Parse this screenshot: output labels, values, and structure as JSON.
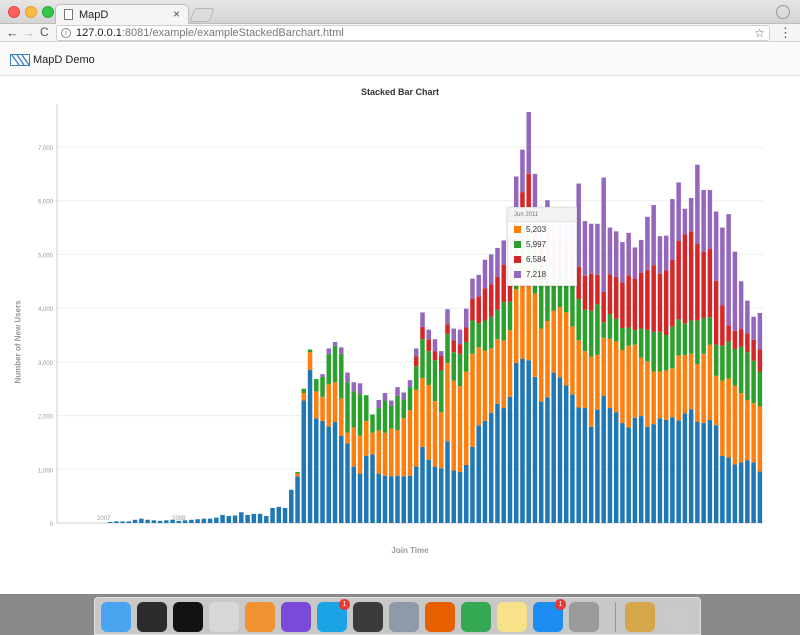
{
  "browser": {
    "tab_title": "MapD",
    "tab_close": "×",
    "url_host": "127.0.0.1",
    "url_rest": ":8081/example/exampleStackedBarchart.html",
    "back_glyph": "←",
    "forward_glyph": "→",
    "reload_glyph": "C",
    "info_glyph": "i",
    "star_glyph": "☆",
    "menu_glyph": "⋮"
  },
  "app": {
    "title": "MapD Demo"
  },
  "tooltip": {
    "title": "Jun 2011",
    "rows": [
      {
        "value": "5,203",
        "color": "#ff7f0e"
      },
      {
        "value": "5,997",
        "color": "#2ca02c"
      },
      {
        "value": "6,584",
        "color": "#d62728"
      },
      {
        "value": "7,218",
        "color": "#9467bd"
      }
    ]
  },
  "chart_data": {
    "type": "bar",
    "stacked": true,
    "title": "Stacked Bar Chart",
    "xlabel": "Join Time",
    "ylabel": "Number of New Users",
    "ylim": [
      0,
      7800
    ],
    "yticks": [
      0,
      1000,
      2000,
      3000,
      4000,
      5000,
      6000,
      7000
    ],
    "ytick_labels": [
      "0",
      "1,000",
      "2,000",
      "3,000",
      "4,000",
      "5,000",
      "6,000",
      "7,000"
    ],
    "xtick_labels": [
      {
        "label": "2007",
        "index": 7
      },
      {
        "label": "2008",
        "index": 19
      }
    ],
    "grid": true,
    "series_colors": [
      "#1f77b4",
      "#ff7f0e",
      "#2ca02c",
      "#d62728",
      "#9467bd"
    ],
    "series_cumulative": {
      "s1": [
        0,
        0,
        0,
        0,
        0,
        0,
        0,
        0,
        20,
        30,
        30,
        30,
        60,
        80,
        60,
        50,
        40,
        50,
        60,
        40,
        50,
        60,
        70,
        80,
        80,
        100,
        150,
        130,
        140,
        200,
        150,
        170,
        170,
        130,
        280,
        300,
        280,
        620,
        870,
        2280,
        2850,
        1950,
        1900,
        1800,
        1880,
        1620,
        1480,
        1050,
        920,
        1250,
        1280,
        920,
        880,
        870,
        880,
        870,
        880,
        1050,
        1420,
        1180,
        1050,
        1020,
        1520,
        980,
        950,
        1080,
        1420,
        1820,
        1900,
        2050,
        2220,
        2140,
        2350,
        2980,
        3060,
        3030,
        2720,
        2260,
        2340,
        2800,
        2710,
        2560,
        2390,
        2150,
        2140,
        1790,
        2110,
        2370,
        2140,
        2060,
        1860,
        1780,
        1960,
        1990,
        1790,
        1840,
        1950,
        1920,
        1970,
        1910,
        2040,
        2120,
        1880,
        1860,
        1920,
        1820,
        1250,
        1220,
        1090,
        1130,
        1170,
        1130,
        960
      ],
      "s2": [
        0,
        0,
        0,
        0,
        0,
        0,
        0,
        0,
        20,
        30,
        30,
        30,
        60,
        80,
        60,
        50,
        40,
        50,
        60,
        40,
        50,
        60,
        70,
        80,
        80,
        100,
        150,
        130,
        140,
        200,
        150,
        170,
        170,
        130,
        280,
        300,
        280,
        620,
        920,
        2420,
        3180,
        2450,
        2350,
        2580,
        2620,
        2320,
        1680,
        1780,
        1630,
        1900,
        1680,
        1720,
        1680,
        1760,
        1730,
        1950,
        2100,
        2480,
        2700,
        2570,
        2270,
        2060,
        2980,
        2650,
        2550,
        2820,
        3150,
        3270,
        3210,
        3250,
        3420,
        3400,
        3590,
        4350,
        4670,
        4800,
        4270,
        3620,
        3760,
        3950,
        4020,
        3920,
        3660,
        3400,
        3200,
        3100,
        3130,
        3450,
        3430,
        3380,
        3220,
        3300,
        3320,
        3080,
        3010,
        2820,
        2820,
        2840,
        2880,
        3120,
        3130,
        3150,
        2960,
        3150,
        3320,
        2740,
        2650,
        2690,
        2560,
        2420,
        2290,
        2230,
        2170
      ],
      "s3": [
        0,
        0,
        0,
        0,
        0,
        0,
        0,
        0,
        20,
        30,
        30,
        30,
        60,
        80,
        60,
        50,
        40,
        50,
        60,
        40,
        50,
        60,
        70,
        80,
        80,
        100,
        150,
        130,
        140,
        200,
        150,
        170,
        170,
        130,
        280,
        300,
        280,
        620,
        950,
        2500,
        3230,
        2680,
        2720,
        3150,
        3300,
        3150,
        2620,
        2450,
        2400,
        2380,
        2020,
        2140,
        2280,
        2180,
        2370,
        2300,
        2530,
        2920,
        3420,
        3200,
        3030,
        2840,
        3520,
        3180,
        3150,
        3370,
        3770,
        3720,
        3770,
        3840,
        3970,
        4110,
        4120,
        5130,
        5530,
        5880,
        5170,
        4710,
        4870,
        4620,
        4650,
        4620,
        4420,
        4170,
        3970,
        3950,
        4070,
        3740,
        3890,
        3800,
        3630,
        3640,
        3590,
        3620,
        3600,
        3560,
        3560,
        3500,
        3660,
        3790,
        3710,
        3770,
        3770,
        3810,
        3830,
        3320,
        3300,
        3380,
        3240,
        3280,
        3180,
        3020,
        2820
      ],
      "s4": [
        0,
        0,
        0,
        0,
        0,
        0,
        0,
        0,
        20,
        30,
        30,
        30,
        60,
        80,
        60,
        50,
        40,
        50,
        60,
        40,
        50,
        60,
        70,
        80,
        80,
        100,
        150,
        130,
        140,
        200,
        150,
        170,
        170,
        130,
        280,
        300,
        280,
        620,
        950,
        2500,
        3230,
        2680,
        2720,
        3150,
        3300,
        3150,
        2620,
        2450,
        2400,
        2380,
        2020,
        2140,
        2280,
        2180,
        2370,
        2300,
        2530,
        3100,
        3650,
        3420,
        3200,
        3110,
        3700,
        3400,
        3330,
        3640,
        4170,
        4220,
        4370,
        4440,
        4580,
        4810,
        4840,
        5870,
        6160,
        6500,
        5800,
        5210,
        5500,
        5220,
        5260,
        5180,
        4950,
        4770,
        4600,
        4640,
        4620,
        4300,
        4630,
        4580,
        4480,
        4610,
        4550,
        4660,
        4700,
        4800,
        4640,
        4700,
        4900,
        5250,
        5370,
        5430,
        5200,
        5050,
        5100,
        4510,
        4050,
        3680,
        3580,
        3610,
        3530,
        3410,
        3230
      ],
      "s5": [
        0,
        0,
        0,
        0,
        0,
        0,
        0,
        0,
        20,
        30,
        30,
        30,
        60,
        80,
        60,
        50,
        40,
        50,
        60,
        40,
        50,
        60,
        70,
        80,
        80,
        100,
        150,
        130,
        140,
        200,
        150,
        170,
        170,
        130,
        280,
        300,
        280,
        620,
        950,
        2500,
        3230,
        2680,
        2770,
        3250,
        3370,
        3270,
        2800,
        2620,
        2600,
        2380,
        2020,
        2290,
        2420,
        2280,
        2530,
        2430,
        2660,
        3250,
        3920,
        3600,
        3420,
        3200,
        3980,
        3620,
        3600,
        3990,
        4550,
        4620,
        4900,
        5000,
        5120,
        5260,
        5360,
        6450,
        6950,
        7650,
        6500,
        5850,
        6010,
        5850,
        5880,
        5850,
        5850,
        6320,
        5620,
        5570,
        5570,
        6430,
        5500,
        5430,
        5230,
        5400,
        5130,
        5270,
        5700,
        5920,
        5340,
        5350,
        6030,
        6340,
        5850,
        6050,
        6670,
        6200,
        6200,
        5800,
        5500,
        5750,
        5050,
        4500,
        4140,
        3840,
        3910,
        4000,
        4050
      ]
    }
  },
  "dock": {
    "items": [
      {
        "name": "finder-icon",
        "color": "#4aa3ee"
      },
      {
        "name": "activity-monitor-icon",
        "color": "#2b2b2b"
      },
      {
        "name": "terminal-icon",
        "color": "#111111"
      },
      {
        "name": "preview-icon",
        "color": "#d8d8d8"
      },
      {
        "name": "calculator-icon",
        "color": "#f0922f"
      },
      {
        "name": "siri-icon",
        "color": "#7b4ad9"
      },
      {
        "name": "skype-icon",
        "color": "#1aa3e5",
        "badge": "1"
      },
      {
        "name": "obs-icon",
        "color": "#3b3b3b"
      },
      {
        "name": "launchpad-icon",
        "color": "#8e9aa8"
      },
      {
        "name": "firefox-icon",
        "color": "#e66000"
      },
      {
        "name": "chrome-icon",
        "color": "#34a853"
      },
      {
        "name": "notes-icon",
        "color": "#f7e28a"
      },
      {
        "name": "app-store-icon",
        "color": "#1e8cf0",
        "badge": "1"
      },
      {
        "name": "system-preferences-icon",
        "color": "#9a9a9a"
      },
      {
        "name": "archive-icon",
        "color": "#d6a64a"
      },
      {
        "name": "trash-icon",
        "color": "#c9c9c9"
      }
    ]
  }
}
